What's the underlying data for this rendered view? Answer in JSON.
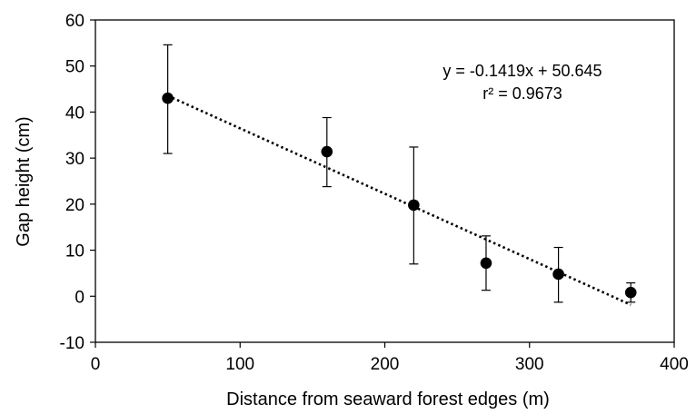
{
  "chart_data": {
    "type": "scatter",
    "xlabel": "Distance from seaward forest edges (m)",
    "ylabel": "Gap height (cm)",
    "xlim": [
      0,
      400
    ],
    "ylim": [
      -10,
      60
    ],
    "xticks": [
      0,
      100,
      200,
      300,
      400
    ],
    "yticks": [
      -10,
      0,
      10,
      20,
      30,
      40,
      50,
      60
    ],
    "grid": false,
    "points": [
      {
        "x": 50,
        "y": 43.0,
        "err_low": 31.0,
        "err_high": 54.6
      },
      {
        "x": 160,
        "y": 31.4,
        "err_low": 23.8,
        "err_high": 38.8
      },
      {
        "x": 220,
        "y": 19.8,
        "err_low": 7.0,
        "err_high": 32.4
      },
      {
        "x": 270,
        "y": 7.2,
        "err_low": 1.3,
        "err_high": 13.1
      },
      {
        "x": 320,
        "y": 4.8,
        "err_low": -1.3,
        "err_high": 10.6
      },
      {
        "x": 370,
        "y": 0.8,
        "err_low": -1.3,
        "err_high": 2.9
      }
    ],
    "trendline": {
      "style": "dotted",
      "slope": -0.1419,
      "intercept": 50.645,
      "x_range": [
        50,
        370
      ],
      "equation_text": "y = -0.1419x + 50.645",
      "r2_text": "r² = 0.9673"
    }
  }
}
